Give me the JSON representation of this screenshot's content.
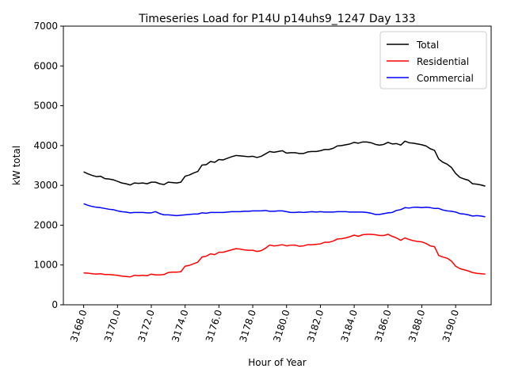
{
  "chart_data": {
    "type": "line",
    "title": "Timeseries Load for P14U p14uhs9_1247  Day 133",
    "xlabel": "Hour of Year",
    "ylabel": "kW total",
    "xlim": [
      3166.8,
      3192.1
    ],
    "ylim": [
      0,
      7000
    ],
    "xticks": [
      3168,
      3170,
      3172,
      3174,
      3176,
      3178,
      3180,
      3182,
      3184,
      3186,
      3188,
      3190
    ],
    "xtick_labels": [
      "3168.0",
      "3170.0",
      "3172.0",
      "3174.0",
      "3176.0",
      "3178.0",
      "3180.0",
      "3182.0",
      "3184.0",
      "3186.0",
      "3188.0",
      "3190.0"
    ],
    "yticks": [
      0,
      1000,
      2000,
      3000,
      4000,
      5000,
      6000,
      7000
    ],
    "ytick_labels": [
      "0",
      "1000",
      "2000",
      "3000",
      "4000",
      "5000",
      "6000",
      "7000"
    ],
    "legend_position": "top-right",
    "x": [
      3168.0,
      3168.25,
      3168.5,
      3168.75,
      3169.0,
      3169.25,
      3169.5,
      3169.75,
      3170.0,
      3170.25,
      3170.5,
      3170.75,
      3171.0,
      3171.25,
      3171.5,
      3171.75,
      3172.0,
      3172.25,
      3172.5,
      3172.75,
      3173.0,
      3173.25,
      3173.5,
      3173.75,
      3174.0,
      3174.25,
      3174.5,
      3174.75,
      3175.0,
      3175.25,
      3175.5,
      3175.75,
      3176.0,
      3176.25,
      3176.5,
      3176.75,
      3177.0,
      3177.25,
      3177.5,
      3177.75,
      3178.0,
      3178.25,
      3178.5,
      3178.75,
      3179.0,
      3179.25,
      3179.5,
      3179.75,
      3180.0,
      3180.25,
      3180.5,
      3180.75,
      3181.0,
      3181.25,
      3181.5,
      3181.75,
      3182.0,
      3182.25,
      3182.5,
      3182.75,
      3183.0,
      3183.25,
      3183.5,
      3183.75,
      3184.0,
      3184.25,
      3184.5,
      3184.75,
      3185.0,
      3185.25,
      3185.5,
      3185.75,
      3186.0,
      3186.25,
      3186.5,
      3186.75,
      3187.0,
      3187.25,
      3187.5,
      3187.75,
      3188.0,
      3188.25,
      3188.5,
      3188.75,
      3189.0,
      3189.25,
      3189.5,
      3189.75,
      3190.0,
      3190.25,
      3190.5,
      3190.75,
      3191.0,
      3191.25,
      3191.5,
      3191.75
    ],
    "series": [
      {
        "name": "Total",
        "color": "#000000",
        "values": [
          3340,
          3290,
          3250,
          3220,
          3230,
          3170,
          3160,
          3140,
          3100,
          3060,
          3040,
          3010,
          3060,
          3050,
          3060,
          3040,
          3080,
          3080,
          3040,
          3020,
          3080,
          3070,
          3060,
          3080,
          3230,
          3260,
          3310,
          3350,
          3510,
          3520,
          3600,
          3580,
          3650,
          3640,
          3680,
          3720,
          3750,
          3740,
          3730,
          3720,
          3730,
          3700,
          3730,
          3790,
          3850,
          3830,
          3850,
          3870,
          3810,
          3820,
          3820,
          3800,
          3800,
          3840,
          3850,
          3850,
          3870,
          3900,
          3900,
          3930,
          3990,
          4000,
          4020,
          4040,
          4080,
          4060,
          4090,
          4090,
          4070,
          4030,
          4010,
          4030,
          4080,
          4040,
          4050,
          4010,
          4110,
          4070,
          4060,
          4040,
          4020,
          3990,
          3920,
          3880,
          3660,
          3580,
          3530,
          3450,
          3300,
          3200,
          3160,
          3130,
          3040,
          3030,
          3010,
          2980
        ]
      },
      {
        "name": "Residential",
        "color": "#ff0000",
        "values": [
          800,
          795,
          780,
          770,
          780,
          760,
          760,
          750,
          740,
          720,
          710,
          700,
          740,
          730,
          740,
          730,
          770,
          750,
          750,
          760,
          810,
          820,
          820,
          830,
          970,
          990,
          1030,
          1070,
          1200,
          1220,
          1280,
          1260,
          1320,
          1320,
          1350,
          1380,
          1410,
          1400,
          1380,
          1370,
          1370,
          1340,
          1360,
          1420,
          1500,
          1480,
          1490,
          1510,
          1480,
          1500,
          1500,
          1470,
          1480,
          1510,
          1510,
          1520,
          1530,
          1570,
          1570,
          1600,
          1650,
          1660,
          1680,
          1710,
          1750,
          1720,
          1760,
          1770,
          1770,
          1760,
          1740,
          1740,
          1770,
          1720,
          1680,
          1620,
          1680,
          1640,
          1610,
          1590,
          1580,
          1540,
          1480,
          1460,
          1240,
          1200,
          1170,
          1100,
          970,
          910,
          880,
          850,
          810,
          790,
          780,
          770
        ]
      },
      {
        "name": "Commercial",
        "color": "#0000ff",
        "values": [
          2540,
          2500,
          2470,
          2450,
          2440,
          2420,
          2400,
          2390,
          2360,
          2340,
          2330,
          2310,
          2320,
          2320,
          2320,
          2310,
          2310,
          2340,
          2290,
          2260,
          2260,
          2250,
          2240,
          2250,
          2260,
          2270,
          2280,
          2280,
          2310,
          2300,
          2320,
          2320,
          2320,
          2320,
          2330,
          2340,
          2340,
          2340,
          2350,
          2350,
          2360,
          2360,
          2360,
          2370,
          2350,
          2350,
          2360,
          2360,
          2340,
          2320,
          2320,
          2330,
          2320,
          2330,
          2340,
          2330,
          2340,
          2330,
          2330,
          2330,
          2340,
          2340,
          2340,
          2330,
          2330,
          2330,
          2330,
          2320,
          2300,
          2270,
          2270,
          2290,
          2310,
          2320,
          2370,
          2390,
          2440,
          2430,
          2450,
          2450,
          2440,
          2450,
          2440,
          2420,
          2420,
          2380,
          2360,
          2350,
          2330,
          2290,
          2280,
          2260,
          2230,
          2240,
          2230,
          2210
        ]
      }
    ]
  }
}
